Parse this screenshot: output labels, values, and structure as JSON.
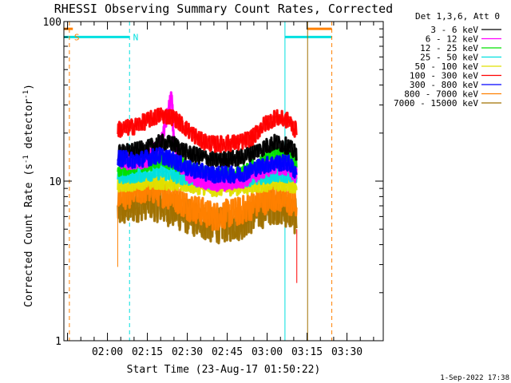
{
  "chart_data": {
    "type": "line",
    "title": "RHESSI Observing Summary Count Rates, Corrected",
    "xlabel": "Start Time (23-Aug-17 01:50:22)",
    "ylabel_main": "Corrected Count Rate (s",
    "ylabel_sup1": "-1",
    "ylabel_mid": " detector",
    "ylabel_sup2": "-1",
    "ylabel_end": ")",
    "y_scale": "log",
    "ylim": [
      1,
      100
    ],
    "y_ticks": [
      {
        "value": 1,
        "label": "1"
      },
      {
        "value": 10,
        "label": "10"
      },
      {
        "value": 100,
        "label": "100"
      }
    ],
    "xlim_minutes": [
      -16.37,
      103.63
    ],
    "x_ticks": [
      {
        "minute": 0,
        "label": "02:00"
      },
      {
        "minute": 15,
        "label": "02:15"
      },
      {
        "minute": 30,
        "label": "02:30"
      },
      {
        "minute": 45,
        "label": "02:45"
      },
      {
        "minute": 60,
        "label": "03:00"
      },
      {
        "minute": 75,
        "label": "03:15"
      },
      {
        "minute": 90,
        "label": "03:30"
      }
    ],
    "legend_title": "Det 1,3,6, Att 0",
    "legend_position": "top-right outside",
    "series": [
      {
        "name": "3 - 6 keV",
        "color": "#000000",
        "minutes": [
          4,
          10,
          15,
          20,
          25,
          30,
          40,
          50,
          58,
          63,
          68,
          70.5
        ],
        "values": [
          15,
          15.5,
          16,
          17.5,
          17,
          15,
          13.5,
          14,
          16,
          17.5,
          16.5,
          15
        ]
      },
      {
        "name": "6 - 12 keV",
        "color": "#ff00ff",
        "minutes": [
          4,
          10,
          15,
          20,
          22,
          24,
          25,
          27,
          30,
          40,
          50,
          58,
          63,
          68,
          70.5
        ],
        "values": [
          13,
          13.5,
          13.5,
          17,
          24,
          34,
          17,
          13,
          11,
          9.5,
          10,
          11.5,
          12.5,
          12,
          11
        ]
      },
      {
        "name": "12 - 25 keV",
        "color": "#00e000",
        "minutes": [
          4,
          10,
          15,
          20,
          25,
          30,
          40,
          50,
          58,
          63,
          68,
          70.5
        ],
        "values": [
          12,
          12.5,
          13,
          13.5,
          13,
          12,
          10.5,
          11,
          13,
          14.5,
          14,
          13
        ]
      },
      {
        "name": "25 - 50 keV",
        "color": "#00e0e0",
        "minutes": [
          4,
          10,
          15,
          20,
          25,
          30,
          40,
          50,
          58,
          63,
          68,
          70.5
        ],
        "values": [
          10.5,
          11,
          11.2,
          11.5,
          11,
          10.5,
          10,
          10.2,
          10.8,
          11,
          11,
          10.5
        ]
      },
      {
        "name": "50 - 100 keV",
        "color": "#e0e000",
        "minutes": [
          4,
          10,
          15,
          20,
          25,
          30,
          40,
          50,
          58,
          63,
          68,
          70.5
        ],
        "values": [
          9.5,
          9.8,
          10,
          10,
          9.8,
          9.5,
          9,
          9.2,
          9.6,
          9.8,
          9.6,
          9.5
        ]
      },
      {
        "name": "100 - 300 keV",
        "color": "#ff0000",
        "minutes": [
          4,
          10,
          15,
          20,
          25,
          30,
          35,
          40,
          50,
          55,
          58,
          63,
          68,
          70.5
        ],
        "values": [
          21,
          22,
          24,
          26,
          25,
          21,
          18,
          17,
          17.5,
          19,
          22,
          25,
          24,
          21
        ]
      },
      {
        "name": "300 - 800 keV",
        "color": "#0000ff",
        "minutes": [
          4,
          10,
          15,
          20,
          25,
          30,
          40,
          50,
          58,
          63,
          68,
          70.5
        ],
        "values": [
          14,
          13.5,
          14,
          14.5,
          13.5,
          12,
          11,
          11,
          12.5,
          13,
          13,
          11.5
        ]
      },
      {
        "name": "800 - 7000 keV",
        "color": "#ff8000",
        "minutes": [
          4,
          10,
          15,
          20,
          25,
          30,
          40,
          50,
          58,
          63,
          68,
          70.5
        ],
        "values": [
          8,
          8.5,
          9,
          8.5,
          8,
          7,
          6,
          6.5,
          7.5,
          8,
          7.5,
          7
        ]
      },
      {
        "name": "7000 - 15000 keV",
        "color": "#a07000",
        "minutes": [
          4,
          10,
          15,
          20,
          25,
          30,
          40,
          50,
          58,
          63,
          68,
          70.5
        ],
        "values": [
          6.5,
          7,
          7.5,
          7,
          6.5,
          6,
          5.2,
          5.5,
          6.5,
          7,
          6.5,
          6
        ]
      }
    ],
    "annotations": [
      {
        "text": "S",
        "minute": -12.5,
        "color": "#ff8000"
      },
      {
        "text": "N",
        "minute": 9.6,
        "color": "#00e0e0"
      }
    ],
    "vertical_markers": [
      {
        "minute": -14.3,
        "color": "#ff8000",
        "style": "dashed"
      },
      {
        "minute": 8.3,
        "color": "#00e0e0",
        "style": "dashed"
      },
      {
        "minute": 66.7,
        "color": "#00e0e0",
        "style": "solid"
      },
      {
        "minute": 75.2,
        "color": "#a07000",
        "style": "solid"
      },
      {
        "minute": 84.3,
        "color": "#ff8000",
        "style": "dashed"
      }
    ],
    "flag_bars": [
      {
        "minute_start": -16.37,
        "minute_end": 8.3,
        "level": 80,
        "color": "#00e0e0"
      },
      {
        "minute_start": -16.37,
        "minute_end": -13,
        "level": 90,
        "color": "#ff8000"
      },
      {
        "minute_start": 66.7,
        "minute_end": 84.3,
        "level": 80,
        "color": "#00e0e0"
      },
      {
        "minute_start": 75.2,
        "minute_end": 84.3,
        "level": 90,
        "color": "#ff8000"
      }
    ],
    "data_gap_minutes": [
      4,
      71
    ],
    "footer_stamp": "1-Sep-2022 17:38"
  }
}
